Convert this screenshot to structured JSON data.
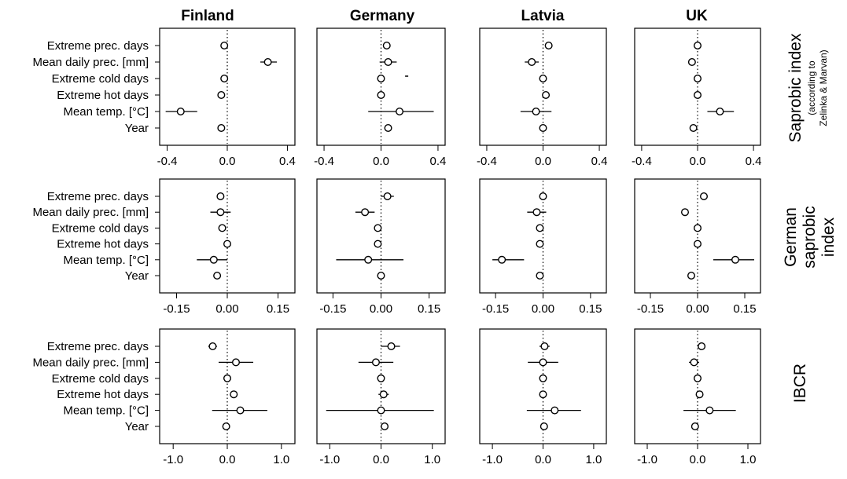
{
  "countries": [
    "Finland",
    "Germany",
    "Latvia",
    "UK"
  ],
  "variables": [
    "Extreme prec. days",
    "Mean daily prec. [mm]",
    "Extreme cold days",
    "Extreme hot days",
    "Mean temp. [°C]",
    "Year"
  ],
  "row_titles": [
    {
      "main": "Saprobic index",
      "sub1": "(according to",
      "sub2": "Zelinka & Marvan)"
    },
    {
      "main1": "German",
      "main2": "saprobic",
      "main3": "index"
    },
    {
      "main": "IBCR"
    }
  ],
  "chart_data": [
    {
      "type": "dot-whisker",
      "index": "Saprobic index",
      "xlim": [
        -0.45,
        0.45
      ],
      "xticks": [
        -0.4,
        0.0,
        0.4
      ],
      "xtick_labels": [
        "-0.4",
        "0.0",
        "0.4"
      ],
      "categories": [
        "Extreme prec. days",
        "Mean daily prec. [mm]",
        "Extreme cold days",
        "Extreme hot days",
        "Mean temp. [°C]",
        "Year"
      ],
      "panels": [
        {
          "country": "Finland",
          "estimate": [
            -0.02,
            0.27,
            -0.02,
            -0.04,
            -0.31,
            -0.04
          ],
          "lower": [
            -0.02,
            0.22,
            -0.02,
            -0.04,
            -0.41,
            -0.04
          ],
          "upper": [
            -0.02,
            0.33,
            -0.02,
            -0.04,
            -0.2,
            -0.04
          ]
        },
        {
          "country": "Germany",
          "estimate": [
            0.04,
            0.05,
            0.0,
            0.0,
            0.13,
            0.05
          ],
          "lower": [
            0.02,
            -0.01,
            0.0,
            0.0,
            -0.09,
            0.05
          ],
          "upper": [
            0.06,
            0.11,
            0.0,
            0.0,
            0.37,
            0.05
          ],
          "extra_points": [
            {
              "x": 0.18,
              "row": 2
            }
          ]
        },
        {
          "country": "Latvia",
          "estimate": [
            0.04,
            -0.08,
            0.0,
            0.02,
            -0.05,
            0.0
          ],
          "lower": [
            0.04,
            -0.13,
            0.0,
            0.02,
            -0.16,
            0.0
          ],
          "upper": [
            0.04,
            -0.03,
            0.0,
            0.02,
            0.06,
            0.0
          ],
          "extra_points": []
        },
        {
          "country": "UK",
          "estimate": [
            0.0,
            -0.04,
            0.0,
            0.0,
            0.16,
            -0.03
          ],
          "lower": [
            0.0,
            -0.04,
            0.0,
            0.0,
            0.07,
            -0.03
          ],
          "upper": [
            0.0,
            -0.04,
            0.0,
            0.0,
            0.26,
            -0.03
          ]
        }
      ]
    },
    {
      "type": "dot-whisker",
      "index": "German saprobic index",
      "xlim": [
        -0.2,
        0.2
      ],
      "xticks": [
        -0.15,
        0.0,
        0.15
      ],
      "xtick_labels": [
        "-0.15",
        "0.00",
        "0.15"
      ],
      "categories": [
        "Extreme prec. days",
        "Mean daily prec. [mm]",
        "Extreme cold days",
        "Extreme hot days",
        "Mean temp. [°C]",
        "Year"
      ],
      "panels": [
        {
          "country": "Finland",
          "estimate": [
            -0.02,
            -0.02,
            -0.015,
            0.0,
            -0.04,
            -0.03
          ],
          "lower": [
            -0.02,
            -0.05,
            -0.015,
            0.0,
            -0.09,
            -0.03
          ],
          "upper": [
            -0.02,
            0.01,
            -0.015,
            0.0,
            0.0,
            -0.03
          ],
          "extra_points": []
        },
        {
          "country": "Germany",
          "estimate": [
            0.02,
            -0.05,
            -0.01,
            -0.01,
            -0.04,
            0.0
          ],
          "lower": [
            0.0,
            -0.08,
            -0.01,
            -0.01,
            -0.14,
            0.0
          ],
          "upper": [
            0.04,
            -0.02,
            -0.01,
            -0.01,
            0.07,
            0.0
          ],
          "extra_points": []
        },
        {
          "country": "Latvia",
          "estimate": [
            0.0,
            -0.02,
            -0.01,
            -0.01,
            -0.13,
            -0.01
          ],
          "lower": [
            0.0,
            -0.05,
            -0.01,
            -0.01,
            -0.16,
            -0.01
          ],
          "upper": [
            0.0,
            0.01,
            -0.01,
            -0.01,
            -0.06,
            -0.01
          ],
          "extra_points": []
        },
        {
          "country": "UK",
          "estimate": [
            0.02,
            -0.04,
            0.0,
            0.0,
            0.12,
            -0.02
          ],
          "lower": [
            0.02,
            -0.04,
            0.0,
            0.0,
            0.05,
            -0.02
          ],
          "upper": [
            0.02,
            -0.04,
            0.0,
            0.0,
            0.18,
            -0.02
          ],
          "extra_points": []
        }
      ]
    },
    {
      "type": "dot-whisker",
      "index": "IBCR",
      "xlim": [
        -1.25,
        1.25
      ],
      "xticks": [
        -1.0,
        0.0,
        1.0
      ],
      "xtick_labels": [
        "-1.0",
        "0.0",
        "1.0"
      ],
      "categories": [
        "Extreme prec. days",
        "Mean daily prec. [mm]",
        "Extreme cold days",
        "Extreme hot days",
        "Mean temp. [°C]",
        "Year"
      ],
      "panels": [
        {
          "country": "Finland",
          "estimate": [
            -0.27,
            0.16,
            0.0,
            0.12,
            0.24,
            -0.02
          ],
          "lower": [
            -0.35,
            -0.16,
            0.0,
            0.06,
            -0.28,
            -0.02
          ],
          "upper": [
            -0.19,
            0.48,
            0.0,
            0.18,
            0.74,
            -0.02
          ],
          "extra_points": []
        },
        {
          "country": "Germany",
          "estimate": [
            0.2,
            -0.1,
            0.0,
            0.05,
            0.0,
            0.07
          ],
          "lower": [
            0.0,
            -0.44,
            0.0,
            -0.05,
            -1.07,
            0.0
          ],
          "upper": [
            0.37,
            0.24,
            0.0,
            0.15,
            1.03,
            0.14
          ],
          "extra_points": []
        },
        {
          "country": "Latvia",
          "estimate": [
            0.03,
            0.0,
            0.0,
            0.0,
            0.23,
            0.02
          ],
          "lower": [
            -0.07,
            -0.3,
            0.0,
            -0.05,
            -0.32,
            0.02
          ],
          "upper": [
            0.13,
            0.3,
            0.0,
            0.05,
            0.75,
            0.02
          ],
          "extra_points": []
        },
        {
          "country": "UK",
          "estimate": [
            0.08,
            -0.07,
            0.0,
            0.04,
            0.24,
            -0.05
          ],
          "lower": [
            0.03,
            -0.17,
            0.0,
            0.04,
            -0.28,
            -0.05
          ],
          "upper": [
            0.13,
            0.03,
            0.0,
            0.04,
            0.76,
            -0.05
          ],
          "extra_points": []
        }
      ]
    }
  ]
}
